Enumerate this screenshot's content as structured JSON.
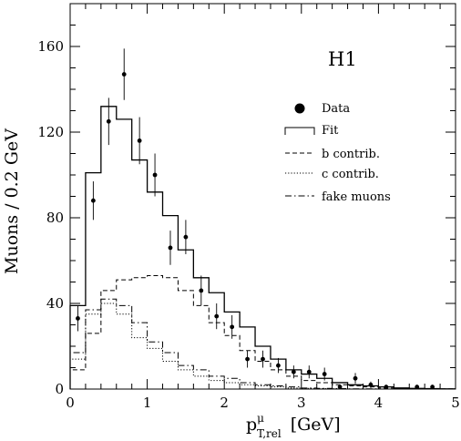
{
  "chart_data": {
    "type": "line",
    "experiment_label": "H1",
    "ylabel": "Muons / 0.2 GeV",
    "xlabel": {
      "main": "p",
      "sup": "μ",
      "sub": "T,rel",
      "unit": "[GeV]"
    },
    "xlim": [
      0,
      5
    ],
    "ylim": [
      0,
      180
    ],
    "xticks": [
      0,
      1,
      2,
      3,
      4,
      5
    ],
    "yticks": [
      0,
      40,
      80,
      120,
      160
    ],
    "grid": false,
    "legend_position": "right-middle",
    "bin_edges": [
      0,
      0.2,
      0.4,
      0.6,
      0.8,
      1.0,
      1.2,
      1.4,
      1.6,
      1.8,
      2.0,
      2.2,
      2.4,
      2.6,
      2.8,
      3.0,
      3.2,
      3.4,
      3.6,
      3.8,
      4.0,
      4.2,
      4.4,
      4.6,
      4.8,
      5.0
    ],
    "series": [
      {
        "name": "Data",
        "style": "points",
        "x": [
          0.1,
          0.3,
          0.5,
          0.7,
          0.9,
          1.1,
          1.3,
          1.5,
          1.7,
          1.9,
          2.1,
          2.3,
          2.5,
          2.7,
          2.9,
          3.1,
          3.3,
          3.5,
          3.7,
          3.9,
          4.1,
          4.3,
          4.5,
          4.7,
          4.9
        ],
        "y": [
          33,
          88,
          125,
          147,
          116,
          100,
          66,
          71,
          46,
          34,
          29,
          14,
          14,
          11,
          8,
          8,
          7,
          1,
          5,
          2,
          1,
          0,
          1,
          1,
          0
        ],
        "yerr": [
          6,
          9,
          11,
          12,
          11,
          10,
          8,
          8,
          7,
          6,
          5.5,
          4,
          4,
          3.5,
          3,
          3,
          3,
          1,
          2.5,
          1.5,
          1,
          0,
          1,
          1,
          0
        ]
      },
      {
        "name": "Fit",
        "style": "solid",
        "values": [
          39,
          101,
          132,
          126,
          107,
          92,
          81,
          65,
          52,
          45,
          36,
          29,
          20,
          14,
          9,
          7,
          5,
          3,
          2,
          1.5,
          1,
          0.5,
          0.3,
          0.2,
          0.1
        ]
      },
      {
        "name": "b contrib.",
        "style": "dashed",
        "values": [
          9,
          26,
          46,
          51,
          52,
          53,
          52,
          46,
          39,
          31,
          25,
          18,
          13,
          9,
          6,
          4,
          3,
          2,
          1.5,
          1,
          0.5,
          0.3,
          0.2,
          0.1,
          0.1
        ]
      },
      {
        "name": "c contrib.",
        "style": "dotted",
        "values": [
          14,
          35,
          40,
          35,
          24,
          19,
          13,
          9,
          6,
          4,
          3,
          2,
          1.5,
          1,
          0.5,
          0.3,
          0.2,
          0.1,
          0,
          0,
          0,
          0,
          0,
          0,
          0
        ]
      },
      {
        "name": "fake muons",
        "style": "dashdot",
        "values": [
          17,
          37,
          42,
          39,
          31,
          22,
          17,
          11,
          9,
          6,
          5,
          3,
          2,
          1.5,
          1,
          0.5,
          0.3,
          0.2,
          0.1,
          0.1,
          0,
          0,
          0,
          0,
          0
        ]
      }
    ]
  }
}
